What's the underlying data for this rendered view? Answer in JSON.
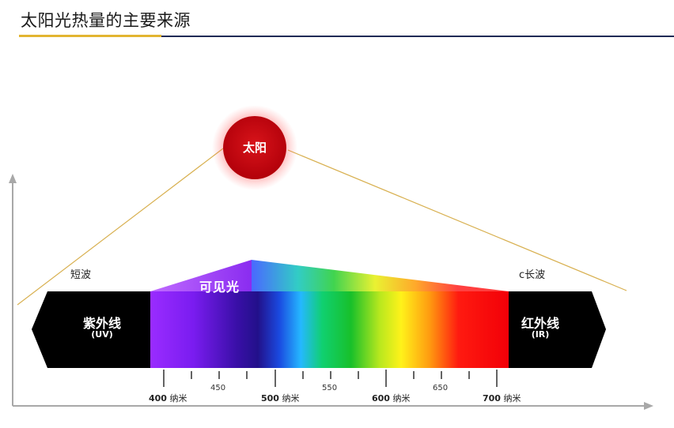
{
  "slide": {
    "title": "太阳光热量的主要来源"
  },
  "sun": {
    "label": "太阳",
    "color": "#c8000a"
  },
  "labels": {
    "short_wave": "短波",
    "long_wave": "c长波",
    "visible_light": "可见光",
    "uv_name": "紫外线",
    "uv_abbr": "(UV)",
    "ir_name": "红外线",
    "ir_abbr": "(IR)"
  },
  "ticks": {
    "unit": "纳米",
    "major": [
      "400",
      "500",
      "600",
      "700"
    ],
    "minor": [
      "450",
      "550",
      "650"
    ]
  },
  "colors": {
    "accent_gold": "#e2b531",
    "accent_navy": "#1f2a55"
  }
}
